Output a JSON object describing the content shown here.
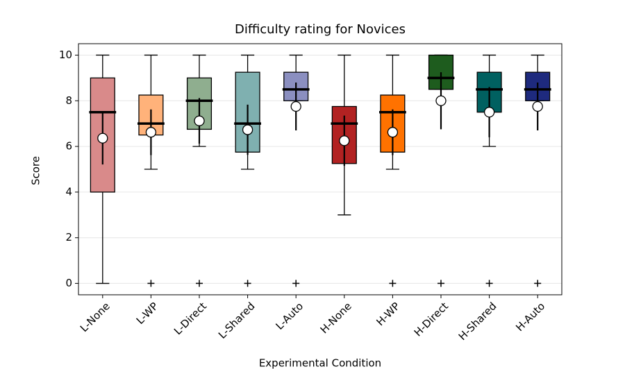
{
  "chart_data": {
    "type": "box",
    "title": "Difficulty rating for Novices",
    "ylabel": "Score",
    "xlabel": "Experimental Condition",
    "categories": [
      "L-None",
      "L-WP",
      "L-Direct",
      "L-Shared",
      "L-Auto",
      "H-None",
      "H-WP",
      "H-Direct",
      "H-Shared",
      "H-Auto"
    ],
    "colors": [
      "#d98a8a",
      "#ffb27a",
      "#8fae8f",
      "#7fb0b0",
      "#8b8fc0",
      "#b22222",
      "#ff7200",
      "#1e5c1e",
      "#006060",
      "#1e2a7e"
    ],
    "boxes": [
      {
        "whislo": 0,
        "q1": 4,
        "med": 7.5,
        "q3": 9,
        "whishi": 10,
        "mean": 6.36,
        "err": 1.15,
        "fliers": []
      },
      {
        "whislo": 5,
        "q1": 6.5,
        "med": 7,
        "q3": 8.25,
        "whishi": 10,
        "mean": 6.62,
        "err": 1.0,
        "fliers": [
          0
        ]
      },
      {
        "whislo": 6,
        "q1": 6.75,
        "med": 8,
        "q3": 9,
        "whishi": 10,
        "mean": 7.12,
        "err": 1.0,
        "fliers": [
          0
        ]
      },
      {
        "whislo": 5,
        "q1": 5.75,
        "med": 7,
        "q3": 9.25,
        "whishi": 10,
        "mean": 6.73,
        "err": 1.1,
        "fliers": [
          0
        ]
      },
      {
        "whislo": 8,
        "q1": 8,
        "med": 8.5,
        "q3": 9.25,
        "whishi": 10,
        "mean": 7.75,
        "err": 1.05,
        "fliers": [
          0
        ]
      },
      {
        "whislo": 3,
        "q1": 5.25,
        "med": 7,
        "q3": 7.75,
        "whishi": 10,
        "mean": 6.25,
        "err": 1.1,
        "fliers": []
      },
      {
        "whislo": 5,
        "q1": 5.75,
        "med": 7.5,
        "q3": 8.25,
        "whishi": 10,
        "mean": 6.62,
        "err": 1.0,
        "fliers": [
          0
        ]
      },
      {
        "whislo": 8.5,
        "q1": 8.5,
        "med": 9,
        "q3": 10,
        "whishi": 10,
        "mean": 8,
        "err": 1.25,
        "fliers": [
          0
        ]
      },
      {
        "whislo": 6,
        "q1": 7.5,
        "med": 8.5,
        "q3": 9.25,
        "whishi": 10,
        "mean": 7.5,
        "err": 1.1,
        "fliers": [
          0
        ]
      },
      {
        "whislo": 8,
        "q1": 8,
        "med": 8.5,
        "q3": 9.25,
        "whishi": 10,
        "mean": 7.75,
        "err": 1.05,
        "fliers": [
          0
        ]
      }
    ],
    "xlim": [
      0.5,
      10.5
    ],
    "ylim": [
      -0.5,
      10.5
    ],
    "yticks": [
      0,
      2,
      4,
      6,
      8,
      10
    ],
    "grid": true
  }
}
